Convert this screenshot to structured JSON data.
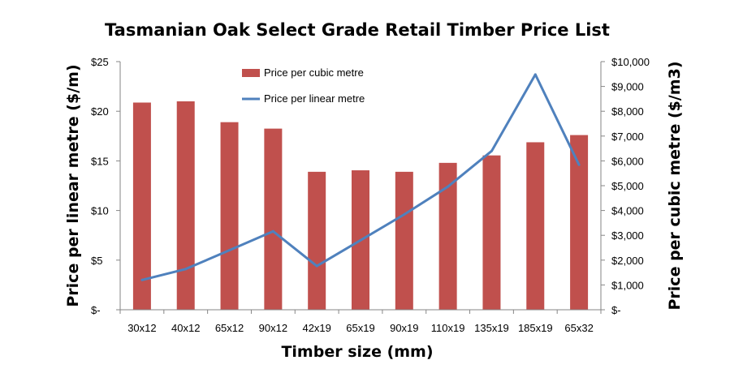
{
  "chart_data": {
    "type": "bar",
    "title": "Tasmanian Oak Select Grade Retail Timber Price List",
    "xlabel": "Timber size (mm)",
    "ylabel": "Price per linear metre ($/m)",
    "y2label": "Price per cubic metre ($/m3)",
    "categories": [
      "30x12",
      "40x12",
      "65x12",
      "90x12",
      "42x19",
      "65x19",
      "90x19",
      "110x19",
      "135x19",
      "185x19",
      "65x32"
    ],
    "ylim": [
      0,
      25
    ],
    "y2lim": [
      0,
      10000
    ],
    "y_ticks": [
      "$-",
      "$5",
      "$10",
      "$15",
      "$20",
      "$25"
    ],
    "y2_ticks": [
      "$-",
      "$1,000",
      "$2,000",
      "$3,000",
      "$4,000",
      "$5,000",
      "$6,000",
      "$7,000",
      "$8,000",
      "$9,000",
      "$10,000"
    ],
    "grid": false,
    "legend_position": "top-center",
    "series": [
      {
        "name": "Price per cubic metre",
        "type": "bar",
        "axis": "right",
        "color": "#c0504d",
        "values": [
          8350,
          8400,
          7560,
          7300,
          5560,
          5620,
          5560,
          5920,
          6220,
          6750,
          7040
        ]
      },
      {
        "name": "Price per linear metre",
        "type": "line",
        "axis": "left",
        "color": "#4f81bd",
        "values": [
          3.0,
          4.1,
          6.0,
          7.9,
          4.4,
          7.0,
          9.6,
          12.4,
          16.0,
          23.7,
          14.6
        ]
      }
    ]
  }
}
